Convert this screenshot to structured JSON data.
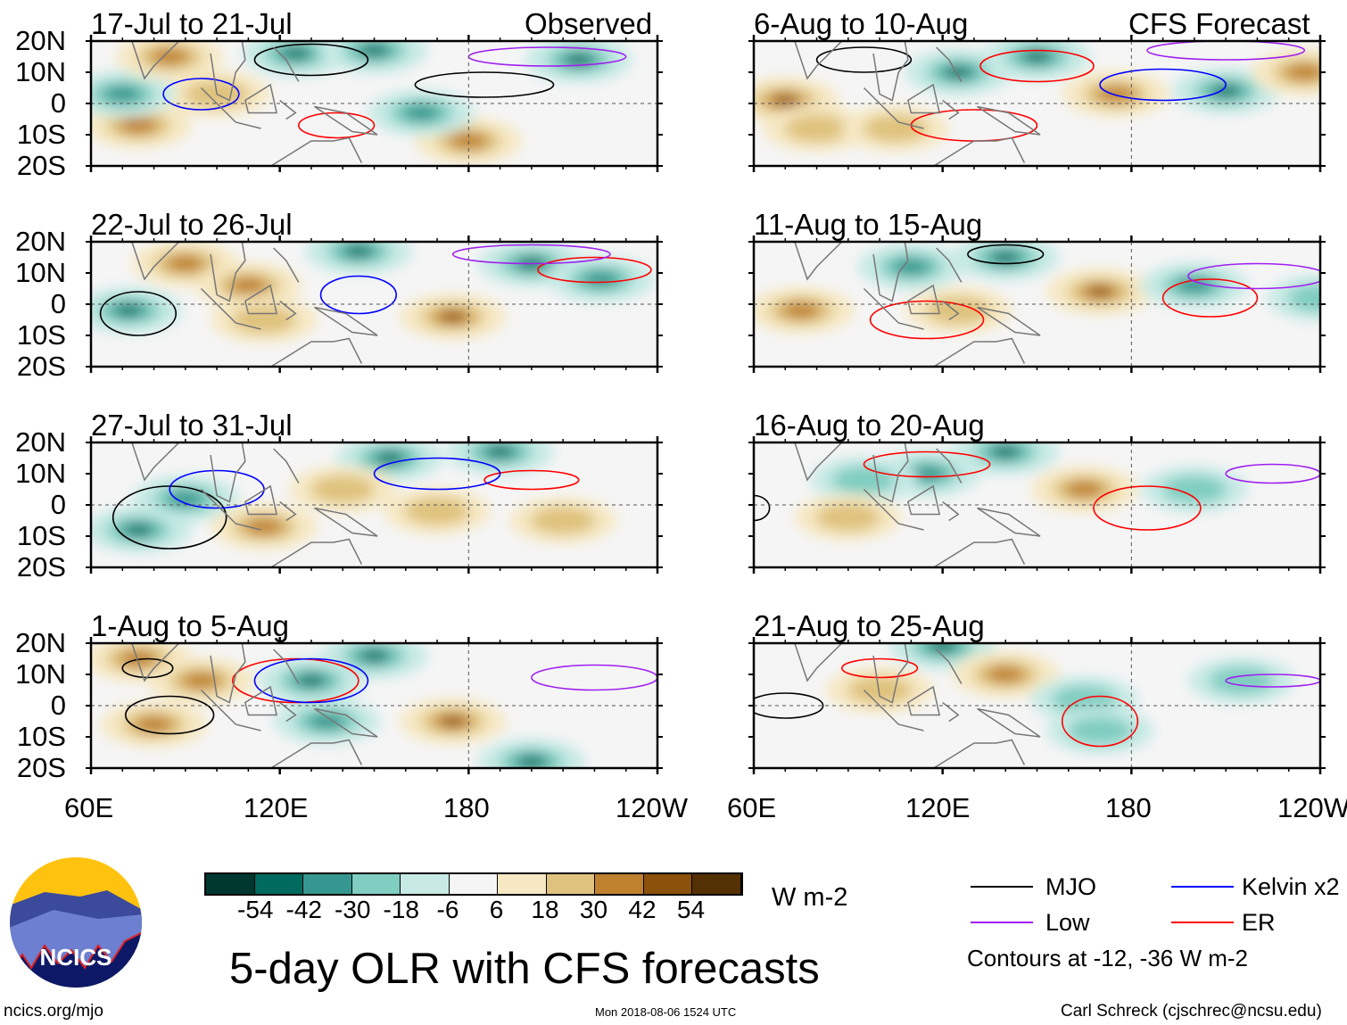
{
  "left_header": "Observed",
  "right_header": "CFS Forecast",
  "lat_labels": [
    "20N",
    "10N",
    "0",
    "10S",
    "20S"
  ],
  "lon_labels": [
    "60E",
    "120E",
    "180",
    "120W"
  ],
  "panels": [
    {
      "title": "17-Jul to 21-Jul",
      "side": "left",
      "row": 0,
      "blobs": [
        [
          125,
          16,
          -54
        ],
        [
          150,
          17,
          -48
        ],
        [
          215,
          14,
          -42
        ],
        [
          75,
          -7,
          36
        ],
        [
          180,
          -12,
          40
        ],
        [
          100,
          3,
          24
        ],
        [
          165,
          -3,
          -30
        ],
        [
          70,
          3,
          -30
        ],
        [
          85,
          15,
          30
        ]
      ],
      "contours": [
        {
          "type": "MJO",
          "lon": 130,
          "lat": 14,
          "rx": 18,
          "ry": 5
        },
        {
          "type": "MJO",
          "lon": 185,
          "lat": 6,
          "rx": 22,
          "ry": 4
        },
        {
          "type": "ER",
          "lon": 138,
          "lat": -7,
          "rx": 12,
          "ry": 4
        },
        {
          "type": "Kelvin",
          "lon": 95,
          "lat": 3,
          "rx": 12,
          "ry": 5
        },
        {
          "type": "Low",
          "lon": 205,
          "lat": 15,
          "rx": 25,
          "ry": 3
        }
      ]
    },
    {
      "title": "22-Jul to 26-Jul",
      "side": "left",
      "row": 1,
      "blobs": [
        [
          90,
          13,
          36
        ],
        [
          145,
          17,
          -48
        ],
        [
          200,
          13,
          -42
        ],
        [
          222,
          8,
          -36
        ],
        [
          175,
          -4,
          42
        ],
        [
          110,
          6,
          30
        ],
        [
          72,
          -2,
          -48
        ],
        [
          115,
          -5,
          24
        ]
      ],
      "contours": [
        {
          "type": "MJO",
          "lon": 75,
          "lat": -3,
          "rx": 12,
          "ry": 7
        },
        {
          "type": "ER",
          "lon": 220,
          "lat": 11,
          "rx": 18,
          "ry": 4
        },
        {
          "type": "Kelvin",
          "lon": 145,
          "lat": 3,
          "rx": 12,
          "ry": 6
        },
        {
          "type": "Low",
          "lon": 200,
          "lat": 16,
          "rx": 25,
          "ry": 3
        }
      ]
    },
    {
      "title": "27-Jul to 31-Jul",
      "side": "left",
      "row": 2,
      "blobs": [
        [
          155,
          15,
          -54
        ],
        [
          190,
          17,
          -54
        ],
        [
          75,
          -8,
          -42
        ],
        [
          90,
          2,
          -36
        ],
        [
          115,
          -7,
          30
        ],
        [
          140,
          5,
          24
        ],
        [
          210,
          -5,
          20
        ],
        [
          170,
          -2,
          24
        ]
      ],
      "contours": [
        {
          "type": "MJO",
          "lon": 85,
          "lat": -4,
          "rx": 18,
          "ry": 10
        },
        {
          "type": "Kelvin",
          "lon": 100,
          "lat": 5,
          "rx": 15,
          "ry": 6
        },
        {
          "type": "ER",
          "lon": 200,
          "lat": 8,
          "rx": 15,
          "ry": 3
        },
        {
          "type": "Kelvin",
          "lon": 170,
          "lat": 10,
          "rx": 20,
          "ry": 5
        }
      ]
    },
    {
      "title": "1-Aug to 5-Aug",
      "side": "left",
      "row": 3,
      "blobs": [
        [
          150,
          16,
          -54
        ],
        [
          130,
          8,
          -48
        ],
        [
          135,
          -5,
          -36
        ],
        [
          175,
          -5,
          42
        ],
        [
          80,
          -6,
          36
        ],
        [
          75,
          15,
          36
        ],
        [
          200,
          -18,
          -48
        ],
        [
          95,
          8,
          30
        ]
      ],
      "contours": [
        {
          "type": "MJO",
          "lon": 85,
          "lat": -3,
          "rx": 14,
          "ry": 6
        },
        {
          "type": "ER",
          "lon": 125,
          "lat": 8,
          "rx": 20,
          "ry": 7
        },
        {
          "type": "Kelvin",
          "lon": 130,
          "lat": 8,
          "rx": 18,
          "ry": 7
        },
        {
          "type": "Low",
          "lon": 220,
          "lat": 9,
          "rx": 20,
          "ry": 4
        },
        {
          "type": "MJO",
          "lon": 78,
          "lat": 12,
          "rx": 8,
          "ry": 3
        }
      ]
    },
    {
      "title": "6-Aug to 10-Aug",
      "side": "right",
      "row": 0,
      "blobs": [
        [
          70,
          1,
          48
        ],
        [
          125,
          10,
          -42
        ],
        [
          150,
          15,
          -54
        ],
        [
          175,
          3,
          36
        ],
        [
          210,
          4,
          -42
        ],
        [
          235,
          10,
          30
        ],
        [
          80,
          -8,
          24
        ],
        [
          105,
          -8,
          20
        ]
      ],
      "contours": [
        {
          "type": "MJO",
          "lon": 95,
          "lat": 14,
          "rx": 15,
          "ry": 4
        },
        {
          "type": "Kelvin",
          "lon": 190,
          "lat": 6,
          "rx": 20,
          "ry": 5
        },
        {
          "type": "ER",
          "lon": 130,
          "lat": -7,
          "rx": 20,
          "ry": 5
        },
        {
          "type": "ER",
          "lon": 150,
          "lat": 12,
          "rx": 18,
          "ry": 5
        },
        {
          "type": "Low",
          "lon": 210,
          "lat": 17,
          "rx": 25,
          "ry": 3
        }
      ]
    },
    {
      "title": "11-Aug to 15-Aug",
      "side": "right",
      "row": 1,
      "blobs": [
        [
          140,
          15,
          -54
        ],
        [
          110,
          12,
          -36
        ],
        [
          170,
          4,
          42
        ],
        [
          200,
          6,
          -36
        ],
        [
          75,
          -2,
          30
        ],
        [
          125,
          -2,
          24
        ],
        [
          240,
          2,
          -24
        ]
      ],
      "contours": [
        {
          "type": "ER",
          "lon": 115,
          "lat": -5,
          "rx": 18,
          "ry": 6
        },
        {
          "type": "ER",
          "lon": 205,
          "lat": 2,
          "rx": 15,
          "ry": 6
        },
        {
          "type": "MJO",
          "lon": 140,
          "lat": 16,
          "rx": 12,
          "ry": 3
        },
        {
          "type": "Low",
          "lon": 220,
          "lat": 9,
          "rx": 22,
          "ry": 4
        }
      ]
    },
    {
      "title": "16-Aug to 20-Aug",
      "side": "right",
      "row": 2,
      "blobs": [
        [
          140,
          17,
          -48
        ],
        [
          165,
          5,
          36
        ],
        [
          115,
          10,
          -30
        ],
        [
          95,
          8,
          -24
        ],
        [
          200,
          5,
          -18
        ],
        [
          90,
          -4,
          18
        ]
      ],
      "contours": [
        {
          "type": "ER",
          "lon": 185,
          "lat": -1,
          "rx": 17,
          "ry": 7
        },
        {
          "type": "ER",
          "lon": 115,
          "lat": 13,
          "rx": 20,
          "ry": 4
        },
        {
          "type": "Low",
          "lon": 225,
          "lat": 10,
          "rx": 15,
          "ry": 3
        },
        {
          "type": "MJO",
          "lon": 60,
          "lat": -1,
          "rx": 5,
          "ry": 4
        }
      ]
    },
    {
      "title": "21-Aug to 25-Aug",
      "side": "right",
      "row": 3,
      "blobs": [
        [
          120,
          19,
          -54
        ],
        [
          140,
          10,
          30
        ],
        [
          100,
          5,
          24
        ],
        [
          165,
          2,
          -24
        ],
        [
          170,
          -8,
          -18
        ],
        [
          215,
          8,
          -18
        ]
      ],
      "contours": [
        {
          "type": "MJO",
          "lon": 70,
          "lat": 0,
          "rx": 12,
          "ry": 4
        },
        {
          "type": "ER",
          "lon": 170,
          "lat": -5,
          "rx": 12,
          "ry": 8
        },
        {
          "type": "Low",
          "lon": 225,
          "lat": 8,
          "rx": 15,
          "ry": 2
        },
        {
          "type": "ER",
          "lon": 100,
          "lat": 12,
          "rx": 12,
          "ry": 3
        }
      ]
    }
  ],
  "colorbar": {
    "colors": [
      "#00382f",
      "#006a5f",
      "#35978f",
      "#80cdc1",
      "#c7eae5",
      "#f5f5f5",
      "#f6e8c3",
      "#dfc27d",
      "#bf812d",
      "#8c510a",
      "#543005"
    ],
    "labels": [
      "-54",
      "-42",
      "-30",
      "-18",
      "-6",
      "6",
      "18",
      "30",
      "42",
      "54"
    ],
    "units": "W m-2"
  },
  "title": "5-day OLR with CFS forecasts",
  "legend": {
    "items": [
      {
        "label": "MJO",
        "color": "#000000"
      },
      {
        "label": "Kelvin x2",
        "color": "#0000ff"
      },
      {
        "label": "Low",
        "color": "#a020f0"
      },
      {
        "label": "ER",
        "color": "#ff0000"
      }
    ],
    "note": "Contours at -12, -36 W m-2"
  },
  "logo_text": "NCICS",
  "footer": {
    "url": "ncics.org/mjo",
    "timestamp": "Mon 2018-08-06 1524 UTC",
    "credit": "Carl Schreck (cjschrec@ncsu.edu)"
  }
}
